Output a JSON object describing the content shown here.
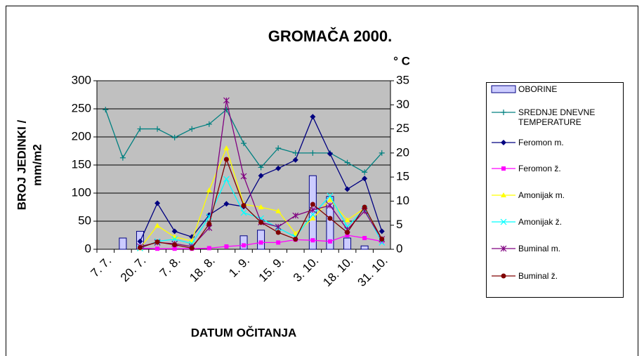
{
  "chart_data": {
    "type": "line",
    "title": "GROMAČA 2000.",
    "xlabel": "DATUM OČITANJA",
    "ylabel": [
      "BROJ JEDINKI /",
      "mm/m2"
    ],
    "y2label": "° C",
    "categories": [
      "7. 7.",
      null,
      "20. 7.",
      null,
      "7. 8.",
      null,
      "18. 8.",
      null,
      "1. 9.",
      null,
      "15. 9.",
      null,
      "3. 10.",
      null,
      "18. 10.",
      null,
      "31. 10."
    ],
    "ylim": [
      0,
      300
    ],
    "yticks": [
      0,
      50,
      100,
      150,
      200,
      250,
      300
    ],
    "y2lim": [
      0,
      35
    ],
    "y2ticks": [
      0,
      5,
      10,
      15,
      20,
      25,
      30,
      35
    ],
    "grid": true,
    "series": [
      {
        "name": "OBORINE",
        "type": "bar",
        "color": "#ccccff",
        "values": [
          null,
          20,
          32,
          null,
          null,
          null,
          null,
          null,
          24,
          34,
          null,
          null,
          131,
          94,
          20,
          6,
          null
        ]
      },
      {
        "name": "SREDNJE DNEVNE TEMPERATURE",
        "axis": "y2",
        "color": "#008080",
        "marker": "plus",
        "values": [
          29,
          19,
          25,
          25,
          23.2,
          25,
          26,
          29,
          22,
          17,
          21,
          20,
          20,
          20,
          18,
          16,
          20
        ]
      },
      {
        "name": "Feromon m.",
        "color": "#000080",
        "marker": "diamond",
        "values": [
          null,
          null,
          14,
          82,
          32,
          22,
          61,
          81,
          76,
          131,
          144,
          159,
          236,
          170,
          107,
          126,
          32
        ]
      },
      {
        "name": "Feromon ž.",
        "color": "#ff00ff",
        "marker": "square",
        "values": [
          null,
          null,
          2,
          1,
          1,
          1,
          2,
          5,
          7,
          12,
          12,
          17,
          16,
          14,
          25,
          20,
          14
        ]
      },
      {
        "name": "Amonijak m.",
        "color": "#ffff00",
        "marker": "triangle",
        "values": [
          null,
          null,
          2,
          42,
          22,
          15,
          105,
          180,
          80,
          75,
          68,
          28,
          55,
          88,
          52,
          73,
          18
        ]
      },
      {
        "name": "Amonijak ž.",
        "color": "#00ffff",
        "marker": "x",
        "values": [
          null,
          null,
          2,
          14,
          18,
          10,
          58,
          125,
          65,
          55,
          38,
          22,
          62,
          95,
          40,
          72,
          12
        ]
      },
      {
        "name": "Buminal m.",
        "color": "#800080",
        "marker": "star",
        "values": [
          null,
          null,
          5,
          12,
          10,
          5,
          38,
          265,
          130,
          48,
          40,
          60,
          70,
          78,
          35,
          68,
          18
        ]
      },
      {
        "name": "Buminal ž.",
        "color": "#800000",
        "marker": "circle",
        "values": [
          null,
          null,
          3,
          13,
          8,
          2,
          45,
          160,
          78,
          48,
          30,
          18,
          80,
          55,
          30,
          75,
          18
        ]
      }
    ]
  }
}
